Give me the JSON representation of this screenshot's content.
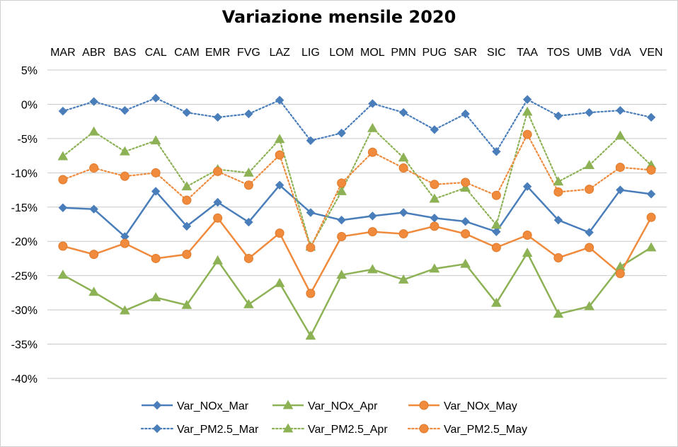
{
  "chart_data": {
    "type": "line",
    "title": "Variazione mensile 2020",
    "categories": [
      "MAR",
      "ABR",
      "BAS",
      "CAL",
      "CAM",
      "EMR",
      "FVG",
      "LAZ",
      "LIG",
      "LOM",
      "MOL",
      "PMN",
      "PUG",
      "SAR",
      "SIC",
      "TAA",
      "TOS",
      "UMB",
      "VdA",
      "VEN"
    ],
    "ylim": [
      -40,
      5
    ],
    "yticks": [
      5,
      0,
      -5,
      -10,
      -15,
      -20,
      -25,
      -30,
      -35,
      -40
    ],
    "ytick_labels": [
      "5%",
      "0%",
      "-5%",
      "-10%",
      "-15%",
      "-20%",
      "-25%",
      "-30%",
      "-35%",
      "-40%"
    ],
    "grid": true,
    "legend_position": "bottom",
    "series": [
      {
        "name": "Var_NOx_Mar",
        "color": "#4a7ebb",
        "marker": "diamond",
        "dash": "solid",
        "values": [
          -15.1,
          -15.3,
          -19.3,
          -12.7,
          -17.8,
          -14.3,
          -17.2,
          -11.8,
          -15.8,
          -16.9,
          -16.3,
          -15.8,
          -16.6,
          -17.1,
          -18.6,
          -12.0,
          -16.9,
          -18.7,
          -12.5,
          -13.1
        ]
      },
      {
        "name": "Var_NOx_Apr",
        "color": "#8db255",
        "marker": "triangle",
        "dash": "solid",
        "values": [
          -24.9,
          -27.4,
          -30.1,
          -28.2,
          -29.3,
          -22.8,
          -29.2,
          -26.1,
          -33.8,
          -24.9,
          -24.1,
          -25.6,
          -24.0,
          -23.3,
          -29.0,
          -21.7,
          -30.6,
          -29.5,
          -23.7,
          -20.9
        ]
      },
      {
        "name": "Var_NOx_May",
        "color": "#f08a3c",
        "marker": "circle",
        "dash": "solid",
        "values": [
          -20.7,
          -21.9,
          -20.3,
          -22.5,
          -21.9,
          -16.6,
          -22.5,
          -18.8,
          -27.6,
          -19.3,
          -18.6,
          -18.9,
          -17.8,
          -18.9,
          -20.9,
          -19.1,
          -22.4,
          -20.9,
          -24.7,
          -16.5
        ]
      },
      {
        "name": "Var_PM2.5_Mar",
        "color": "#4a7ebb",
        "marker": "diamond",
        "dash": "dotted",
        "values": [
          -1.0,
          0.4,
          -0.9,
          0.9,
          -1.2,
          -1.9,
          -1.4,
          0.6,
          -5.3,
          -4.2,
          0.1,
          -1.2,
          -3.7,
          -1.4,
          -6.9,
          0.7,
          -1.7,
          -1.2,
          -0.9,
          -1.9
        ]
      },
      {
        "name": "Var_PM2.5_Apr",
        "color": "#8db255",
        "marker": "triangle",
        "dash": "dotted",
        "values": [
          -7.6,
          -4.0,
          -6.9,
          -5.3,
          -12.0,
          -9.5,
          -10.0,
          -5.1,
          -20.8,
          -12.7,
          -3.5,
          -7.8,
          -13.8,
          -12.2,
          -17.6,
          -1.1,
          -11.3,
          -8.9,
          -4.6,
          -8.9
        ]
      },
      {
        "name": "Var_PM2.5_May",
        "color": "#f08a3c",
        "marker": "circle",
        "dash": "dotted",
        "values": [
          -11.0,
          -9.3,
          -10.5,
          -10.0,
          -14.0,
          -9.8,
          -11.8,
          -7.4,
          -20.9,
          -11.5,
          -7.0,
          -9.3,
          -11.7,
          -11.4,
          -13.3,
          -4.4,
          -12.8,
          -12.4,
          -9.2,
          -9.6
        ]
      }
    ]
  }
}
